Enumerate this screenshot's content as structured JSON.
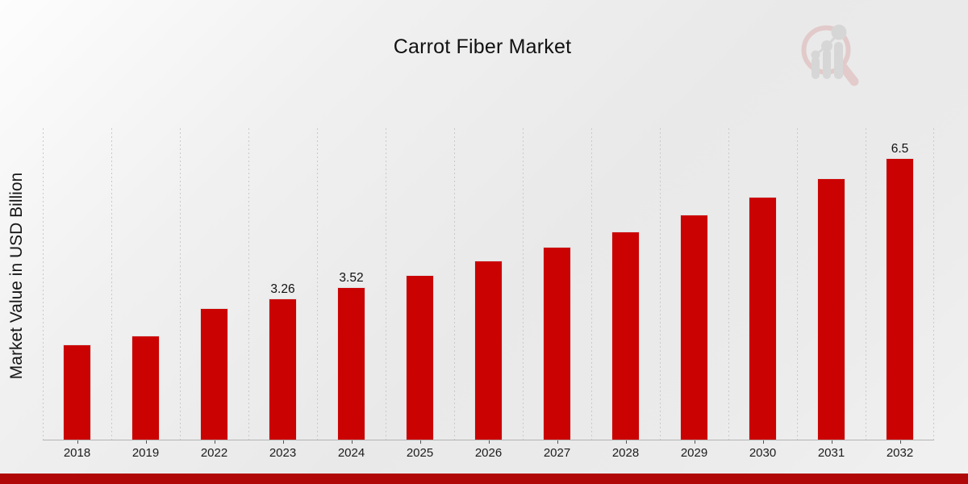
{
  "chart_data": {
    "type": "bar",
    "title": "Carrot Fiber Market",
    "xlabel": "",
    "ylabel": "Market Value in USD Billion",
    "categories": [
      "2018",
      "2019",
      "2022",
      "2023",
      "2024",
      "2025",
      "2026",
      "2027",
      "2028",
      "2029",
      "2030",
      "2031",
      "2032"
    ],
    "values": [
      2.2,
      2.41,
      3.04,
      3.26,
      3.52,
      3.8,
      4.13,
      4.45,
      4.8,
      5.19,
      5.61,
      6.03,
      6.5
    ],
    "bar_labels": [
      "",
      "",
      "",
      "3.26",
      "3.52",
      "",
      "",
      "",
      "",
      "",
      "",
      "",
      "6.5"
    ],
    "ylim": [
      0,
      7.19
    ],
    "grid": "vertical-dotted",
    "legend_position": "none",
    "axes_ticks_visible": false,
    "bar_color": "#cb0202",
    "grid_color": "#c9c9c9",
    "footer_accent_color": "#b00808",
    "watermark_icon": "magnifier-bar-chart-logo-icon"
  }
}
